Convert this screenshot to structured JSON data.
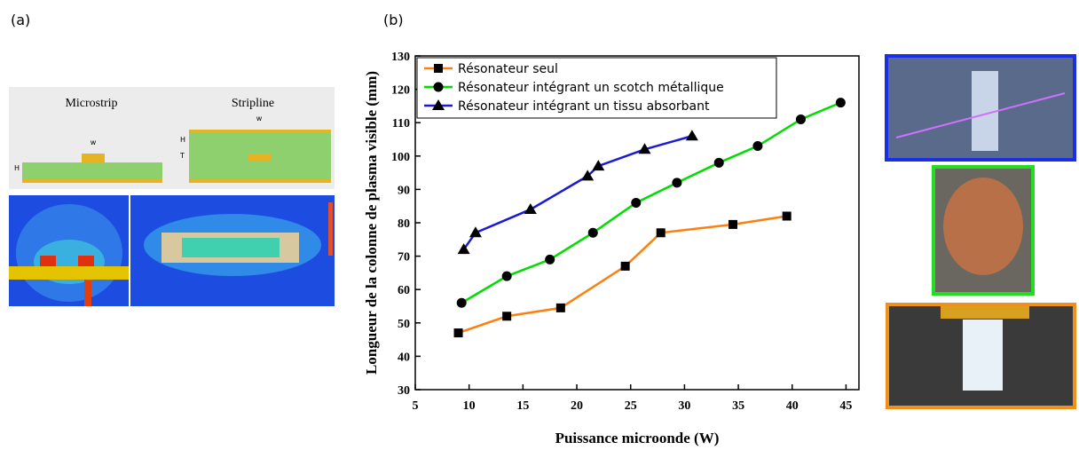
{
  "panel_labels": [
    "(a)",
    "(b)"
  ],
  "diagram": {
    "microstrip": "Microstrip",
    "stripline": "Stripline",
    "width_label": "w",
    "height_label": "H",
    "thickness_label": "T"
  },
  "chart_data": {
    "type": "line",
    "xlabel": "Puissance microonde (W)",
    "ylabel": "Longueur de la colonne de plasma visible (mm)",
    "xlim": [
      5,
      46.2
    ],
    "ylim": [
      30,
      130
    ],
    "xticks": [
      5,
      10,
      15,
      20,
      25,
      30,
      35,
      40,
      45
    ],
    "yticks": [
      30,
      40,
      50,
      60,
      70,
      80,
      90,
      100,
      110,
      120,
      130
    ],
    "legend": "upper left",
    "series": [
      {
        "name": "Résonateur seul",
        "color": "#ff7f0e",
        "marker": "square",
        "x": [
          9,
          13.5,
          18.5,
          24.5,
          27.8,
          34.5,
          39.5
        ],
        "values": [
          47,
          52,
          54.5,
          67,
          77,
          79.5,
          82
        ]
      },
      {
        "name": "Résonateur intégrant un scotch métallique",
        "color": "#00dd00",
        "marker": "circle",
        "x": [
          9.3,
          13.5,
          17.5,
          21.5,
          25.5,
          29.3,
          33.2,
          36.8,
          40.8,
          44.5
        ],
        "values": [
          56,
          64,
          69,
          77,
          86,
          92,
          98,
          103,
          111,
          116
        ]
      },
      {
        "name": "Résonateur intégrant un tissu absorbant",
        "color": "#1a1ad6",
        "marker": "triangle",
        "x": [
          9.5,
          10.6,
          15.7,
          21,
          22,
          26.3,
          30.7
        ],
        "values": [
          72,
          77,
          84,
          94,
          97,
          102,
          106
        ]
      }
    ]
  }
}
